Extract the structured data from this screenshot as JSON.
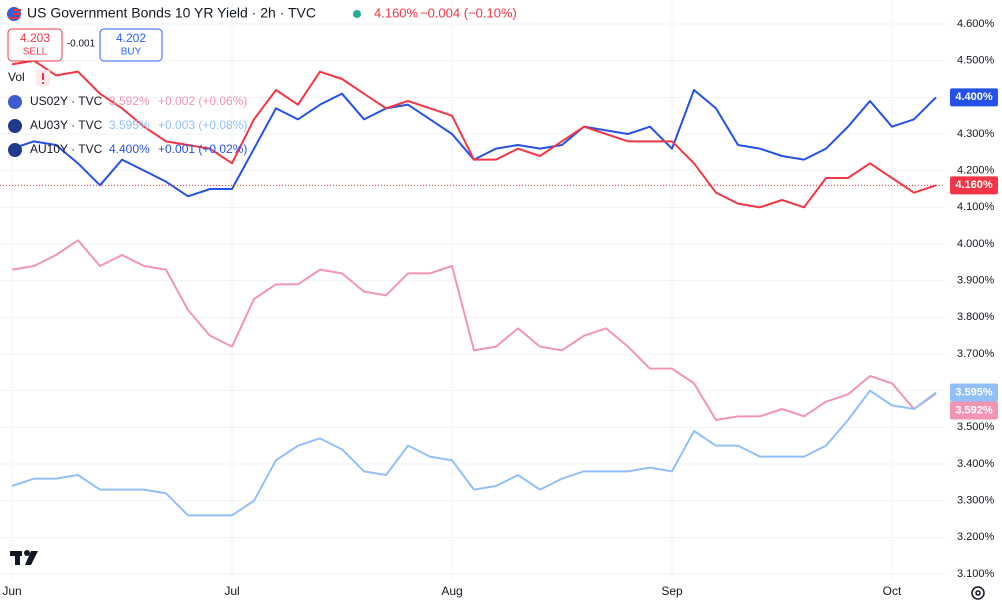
{
  "chart_data": {
    "type": "line",
    "quote": {
      "sell": "4.203",
      "sell_label": "SELL",
      "spread": "-0.001",
      "buy": "4.202",
      "buy_label": "BUY"
    },
    "volume_label": "Vol",
    "categories": [
      "Jun",
      null,
      null,
      null,
      null,
      null,
      null,
      null,
      null,
      null,
      "Jul",
      null,
      null,
      null,
      null,
      null,
      null,
      null,
      null,
      null,
      "Aug",
      null,
      null,
      null,
      null,
      null,
      null,
      null,
      null,
      null,
      "Sep",
      null,
      null,
      null,
      null,
      null,
      null,
      null,
      null,
      null,
      "Oct",
      null,
      null
    ],
    "ylim": [
      3.1,
      4.6
    ],
    "yticks": [
      {
        "value": 3.1,
        "label": "3.100%"
      },
      {
        "value": 3.2,
        "label": "3.200%"
      },
      {
        "value": 3.3,
        "label": "3.300%"
      },
      {
        "value": 3.4,
        "label": "3.400%"
      },
      {
        "value": 3.5,
        "label": "3.500%"
      },
      {
        "value": 3.6,
        "label": "3.600%"
      },
      {
        "value": 3.7,
        "label": "3.700%"
      },
      {
        "value": 3.8,
        "label": "3.800%"
      },
      {
        "value": 3.9,
        "label": "3.900%"
      },
      {
        "value": 4.0,
        "label": "4.000%"
      },
      {
        "value": 4.1,
        "label": "4.100%"
      },
      {
        "value": 4.2,
        "label": "4.200%"
      },
      {
        "value": 4.3,
        "label": "4.300%"
      },
      {
        "value": 4.4,
        "label": "4.400%"
      },
      {
        "value": 4.5,
        "label": "4.500%"
      },
      {
        "value": 4.6,
        "label": "4.600%"
      }
    ],
    "grid": true,
    "series": [
      {
        "name": "US Government Bonds 10 YR Yield · 2h · TVC",
        "color": "#f23645",
        "value_text": "4.160%",
        "change_text": "−0.004 (−0.10%)",
        "values": [
          4.49,
          4.5,
          4.46,
          4.47,
          4.41,
          4.37,
          4.32,
          4.28,
          4.27,
          4.26,
          4.22,
          4.34,
          4.42,
          4.38,
          4.47,
          4.45,
          4.41,
          4.37,
          4.39,
          4.37,
          4.35,
          4.23,
          4.23,
          4.26,
          4.24,
          4.28,
          4.32,
          4.3,
          4.28,
          4.28,
          4.28,
          4.22,
          4.14,
          4.11,
          4.1,
          4.12,
          4.1,
          4.18,
          4.18,
          4.22,
          4.18,
          4.14,
          4.16
        ]
      },
      {
        "name": "US02Y · TVC",
        "color": "#f195b3",
        "value_text": "3.592%",
        "change_text": "+0.002 (+0.06%)",
        "values": [
          3.93,
          3.94,
          3.97,
          4.01,
          3.94,
          3.97,
          3.94,
          3.93,
          3.82,
          3.75,
          3.72,
          3.85,
          3.89,
          3.89,
          3.93,
          3.92,
          3.87,
          3.86,
          3.92,
          3.92,
          3.94,
          3.71,
          3.72,
          3.77,
          3.72,
          3.71,
          3.75,
          3.77,
          3.72,
          3.66,
          3.66,
          3.62,
          3.52,
          3.53,
          3.53,
          3.55,
          3.53,
          3.57,
          3.59,
          3.64,
          3.62,
          3.55,
          3.592
        ]
      },
      {
        "name": "AU03Y · TVC",
        "color": "#90bff9",
        "value_text": "3.595%",
        "change_text": "+0.003 (+0.08%)",
        "values": [
          3.34,
          3.36,
          3.36,
          3.37,
          3.33,
          3.33,
          3.33,
          3.32,
          3.26,
          3.26,
          3.26,
          3.3,
          3.41,
          3.45,
          3.47,
          3.44,
          3.38,
          3.37,
          3.45,
          3.42,
          3.41,
          3.33,
          3.34,
          3.37,
          3.33,
          3.36,
          3.38,
          3.38,
          3.38,
          3.39,
          3.38,
          3.49,
          3.45,
          3.45,
          3.42,
          3.42,
          3.42,
          3.45,
          3.52,
          3.6,
          3.56,
          3.55,
          3.595
        ]
      },
      {
        "name": "AU10Y · TVC",
        "color": "#2451e8",
        "value_text": "4.400%",
        "change_text": "+0.001 (+0.02%)",
        "values": [
          4.26,
          4.28,
          4.27,
          4.22,
          4.16,
          4.23,
          4.2,
          4.17,
          4.13,
          4.15,
          4.15,
          4.26,
          4.37,
          4.34,
          4.38,
          4.41,
          4.34,
          4.37,
          4.38,
          4.34,
          4.3,
          4.23,
          4.26,
          4.27,
          4.26,
          4.27,
          4.32,
          4.31,
          4.3,
          4.32,
          4.26,
          4.42,
          4.37,
          4.27,
          4.26,
          4.24,
          4.23,
          4.26,
          4.32,
          4.39,
          4.32,
          4.34,
          4.4
        ]
      }
    ]
  }
}
